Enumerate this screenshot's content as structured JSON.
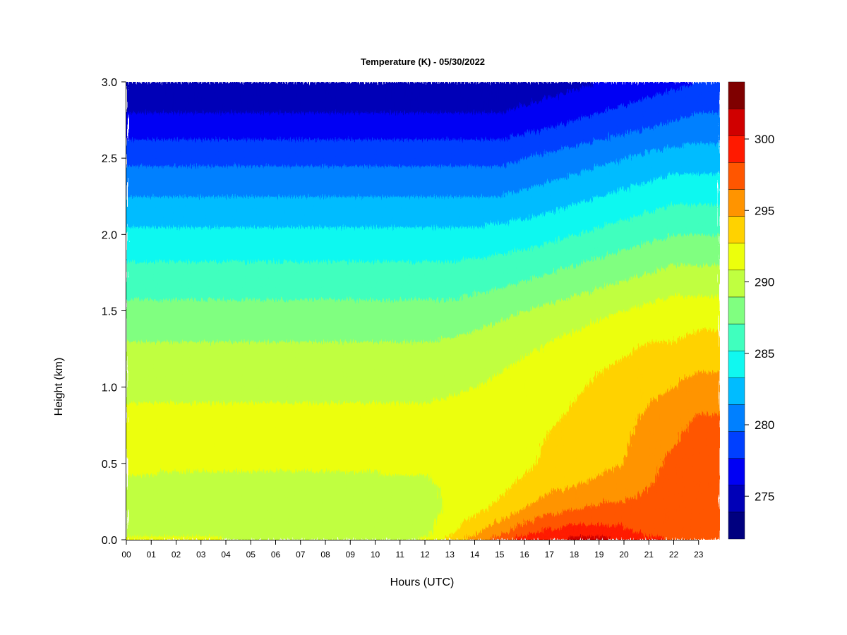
{
  "chart_data": {
    "type": "heatmap",
    "title": "Temperature (K) - 05/30/2022",
    "xlabel": "Hours (UTC)",
    "ylabel": "Height (km)",
    "x_range": [
      0,
      24
    ],
    "y_range": [
      0,
      3.0
    ],
    "x_ticks": [
      "00",
      "01",
      "02",
      "03",
      "04",
      "05",
      "06",
      "07",
      "08",
      "09",
      "10",
      "11",
      "12",
      "13",
      "14",
      "15",
      "16",
      "17",
      "18",
      "19",
      "20",
      "21",
      "22",
      "23"
    ],
    "y_ticks": [
      "0.0",
      "0.5",
      "1.0",
      "1.5",
      "2.0",
      "2.5",
      "3.0"
    ],
    "colorbar": {
      "levels": [
        272,
        274,
        276,
        278,
        280,
        282,
        284,
        286,
        288,
        290,
        292,
        294,
        296,
        298,
        300,
        302,
        304
      ],
      "colors": [
        "#00007f",
        "#0000b7",
        "#0000f4",
        "#0040ff",
        "#0080ff",
        "#00bcff",
        "#10f8f0",
        "#40ffbe",
        "#80ff80",
        "#c0ff40",
        "#ecff0c",
        "#ffd200",
        "#ff9400",
        "#ff5600",
        "#ff1a00",
        "#d00000",
        "#7f0000"
      ],
      "tick_labels": [
        "275",
        "280",
        "285",
        "290",
        "295",
        "300"
      ],
      "tick_values": [
        275,
        280,
        285,
        290,
        295,
        300
      ]
    },
    "heights_km": [
      0.0,
      0.05,
      0.2,
      0.35,
      0.5,
      0.7,
      0.9,
      1.1,
      1.3,
      1.5,
      1.7,
      1.9,
      2.1,
      2.3,
      2.5,
      2.7,
      2.9,
      3.0
    ],
    "profile_times_utc": [
      0,
      3,
      6,
      9,
      11,
      12,
      13,
      14,
      15,
      16,
      17,
      18,
      19,
      20,
      21,
      22,
      23,
      24
    ],
    "temperature_profiles_K": [
      [
        293.0,
        291.5,
        291.0,
        291.5,
        292.5,
        293.0,
        292.0,
        291.0,
        290.0,
        288.5,
        287.0,
        285.5,
        283.5,
        281.5,
        279.5,
        277.0,
        275.0,
        274.0
      ],
      [
        292.5,
        291.0,
        290.5,
        291.0,
        292.5,
        293.0,
        292.0,
        291.0,
        290.0,
        288.5,
        287.0,
        285.5,
        283.5,
        281.5,
        279.5,
        277.0,
        275.0,
        274.0
      ],
      [
        292.0,
        290.8,
        290.5,
        291.0,
        292.5,
        293.0,
        292.0,
        291.0,
        290.0,
        288.5,
        287.0,
        285.5,
        283.5,
        281.5,
        279.5,
        277.0,
        275.0,
        274.0
      ],
      [
        291.5,
        290.8,
        290.5,
        291.0,
        292.5,
        293.0,
        292.0,
        291.0,
        290.0,
        288.5,
        287.0,
        285.5,
        283.5,
        281.5,
        279.5,
        277.0,
        275.0,
        274.0
      ],
      [
        291.0,
        290.5,
        290.8,
        291.5,
        292.5,
        293.0,
        292.0,
        291.0,
        290.0,
        288.5,
        287.0,
        285.5,
        283.5,
        281.5,
        279.5,
        277.0,
        275.0,
        274.0
      ],
      [
        292.5,
        291.5,
        291.0,
        291.5,
        292.5,
        293.0,
        292.0,
        291.0,
        290.0,
        288.5,
        287.0,
        285.5,
        283.5,
        281.5,
        279.5,
        277.0,
        275.0,
        274.0
      ],
      [
        295.0,
        293.5,
        292.5,
        292.5,
        292.8,
        293.0,
        292.2,
        291.2,
        290.2,
        288.5,
        287.0,
        285.5,
        283.5,
        281.5,
        279.5,
        277.0,
        275.0,
        274.0
      ],
      [
        297.0,
        295.5,
        293.5,
        293.0,
        293.0,
        293.0,
        292.5,
        291.5,
        290.5,
        289.0,
        287.2,
        285.5,
        283.5,
        281.5,
        279.5,
        277.0,
        275.0,
        274.5
      ],
      [
        299.0,
        297.5,
        294.5,
        293.5,
        293.0,
        293.0,
        292.8,
        292.0,
        291.0,
        289.5,
        287.5,
        285.8,
        283.8,
        281.5,
        279.5,
        277.0,
        275.0,
        274.5
      ],
      [
        301.0,
        299.5,
        296.0,
        294.5,
        293.5,
        293.5,
        293.2,
        292.5,
        291.5,
        290.0,
        288.0,
        286.0,
        284.0,
        282.0,
        280.0,
        277.5,
        275.5,
        275.0
      ],
      [
        302.0,
        300.5,
        297.5,
        295.5,
        294.5,
        294.0,
        293.5,
        293.0,
        292.0,
        290.5,
        288.5,
        286.5,
        284.5,
        282.5,
        280.5,
        278.0,
        276.0,
        275.0
      ],
      [
        302.5,
        301.0,
        298.0,
        296.0,
        295.0,
        294.5,
        294.0,
        293.5,
        292.5,
        291.0,
        289.0,
        287.0,
        285.0,
        283.0,
        281.0,
        278.5,
        276.5,
        275.5
      ],
      [
        303.0,
        301.0,
        298.5,
        296.5,
        295.5,
        295.0,
        294.5,
        294.0,
        293.0,
        291.5,
        289.5,
        287.5,
        285.5,
        283.5,
        281.5,
        279.0,
        277.0,
        276.0
      ],
      [
        301.5,
        300.5,
        298.5,
        297.0,
        296.0,
        295.5,
        295.0,
        294.5,
        293.5,
        292.0,
        290.0,
        288.0,
        286.0,
        284.0,
        282.0,
        279.5,
        277.5,
        276.5
      ],
      [
        300.5,
        299.5,
        299.0,
        298.0,
        297.5,
        297.0,
        296.0,
        295.0,
        294.0,
        292.5,
        290.5,
        288.5,
        286.5,
        284.5,
        282.5,
        280.0,
        278.0,
        277.0
      ],
      [
        300.0,
        299.5,
        299.0,
        298.5,
        298.5,
        297.5,
        296.5,
        295.5,
        294.0,
        293.0,
        291.0,
        289.0,
        287.0,
        285.0,
        283.0,
        280.5,
        278.5,
        277.5
      ],
      [
        299.5,
        299.0,
        299.0,
        299.5,
        299.5,
        299.0,
        297.5,
        296.0,
        294.5,
        293.0,
        291.0,
        289.0,
        287.0,
        285.0,
        283.0,
        281.0,
        279.0,
        278.0
      ],
      [
        299.0,
        299.0,
        299.0,
        299.5,
        299.5,
        299.0,
        297.5,
        296.0,
        294.5,
        293.0,
        291.0,
        289.0,
        287.0,
        285.0,
        283.0,
        281.0,
        279.0,
        278.0
      ]
    ]
  }
}
